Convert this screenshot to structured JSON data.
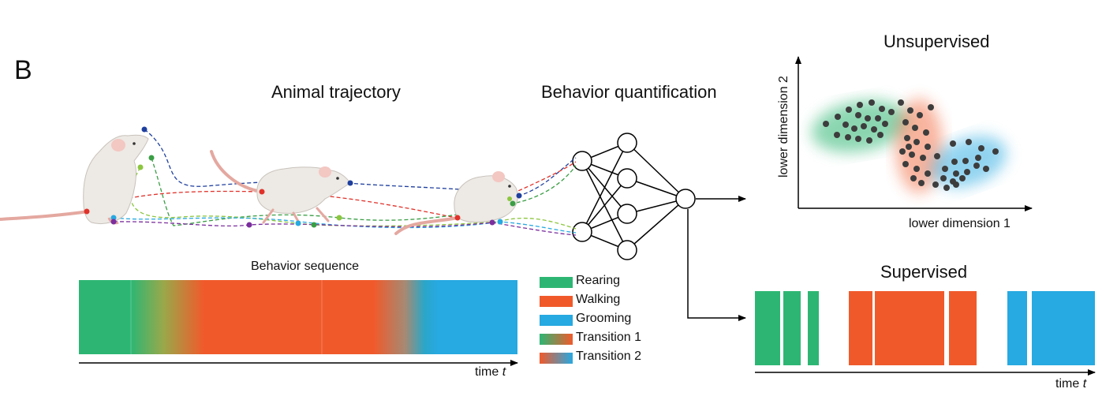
{
  "panel_label": "B",
  "titles": {
    "trajectory": "Animal trajectory",
    "quantification": "Behavior quantification",
    "unsupervised": "Unsupervised",
    "supervised": "Supervised",
    "sequence": "Behavior sequence"
  },
  "axes": {
    "time_label": "time",
    "time_var": "t",
    "lower_dim_1": "lower dimension 1",
    "lower_dim_2": "lower dimension 2"
  },
  "legend": [
    {
      "label": "Rearing",
      "color": "#2db673"
    },
    {
      "label": "Walking",
      "color": "#f05a2b"
    },
    {
      "label": "Grooming",
      "color": "#27a9e1"
    },
    {
      "label": "Transition 1",
      "colors": [
        "#2db673",
        "#f05a2b"
      ]
    },
    {
      "label": "Transition 2",
      "colors": [
        "#f05a2b",
        "#27a9e1"
      ]
    }
  ],
  "colors": {
    "rearing": "#2db673",
    "walking": "#f05a2b",
    "grooming": "#27a9e1",
    "dot": "#3d3d3d",
    "line": "#000000"
  },
  "icons": [
    "mouse-rearing-icon",
    "mouse-walking-icon",
    "mouse-grooming-icon",
    "neural-network-icon"
  ]
}
